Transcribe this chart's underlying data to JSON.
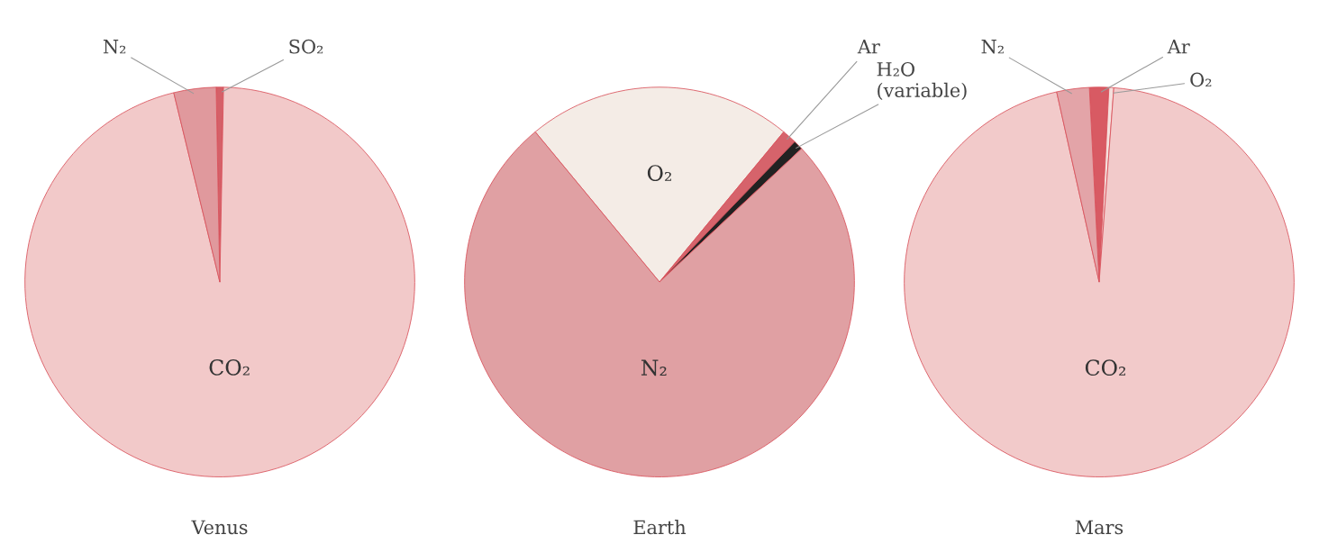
{
  "chart_data": [
    {
      "type": "pie",
      "title": "Venus",
      "categories": [
        "SO₂",
        "CO₂",
        "N₂"
      ],
      "values": [
        0.6,
        95.9,
        3.5
      ],
      "colors": [
        "#d56068",
        "#f2c9c9",
        "#e0999d"
      ]
    },
    {
      "type": "pie",
      "title": "Earth",
      "categories": [
        "O₂",
        "Ar",
        "H₂O\n(variable)",
        "N₂"
      ],
      "values": [
        22,
        1.2,
        0.8,
        76
      ],
      "colors": [
        "#f4ece6",
        "#d6636b",
        "#222222",
        "#e0a0a3"
      ]
    },
    {
      "type": "pie",
      "title": "Mars",
      "categories": [
        "Ar",
        "O₂",
        "CO₂",
        "N₂"
      ],
      "values": [
        1.6,
        0.4,
        95.3,
        2.7
      ],
      "colors": [
        "#d85a63",
        "#f5e0dd",
        "#f2caca",
        "#e3a4a8"
      ]
    }
  ]
}
